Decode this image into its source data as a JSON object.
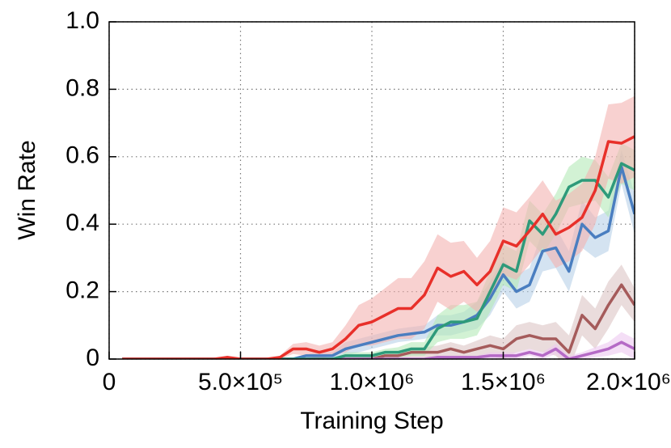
{
  "chart_data": {
    "type": "line",
    "xlabel": "Training Step",
    "ylabel": "Win Rate",
    "x": [
      50000,
      100000,
      150000,
      200000,
      250000,
      300000,
      350000,
      400000,
      450000,
      500000,
      550000,
      600000,
      650000,
      700000,
      750000,
      800000,
      850000,
      900000,
      950000,
      1000000,
      1050000,
      1100000,
      1150000,
      1200000,
      1250000,
      1300000,
      1350000,
      1400000,
      1450000,
      1500000,
      1550000,
      1600000,
      1650000,
      1700000,
      1750000,
      1800000,
      1850000,
      1900000,
      1950000,
      2000000
    ],
    "xlim": [
      0,
      2000000
    ],
    "xticks": [
      0,
      {
        "value": 500000,
        "label": "5.0×10⁵"
      },
      {
        "value": 1000000,
        "label": "1.0×10⁶"
      },
      {
        "value": 1500000,
        "label": "1.5×10⁶"
      },
      {
        "value": 2000000,
        "label": "2.0×10⁶"
      }
    ],
    "ylim": [
      0,
      1
    ],
    "yticks": [
      0,
      0.2,
      0.4,
      0.6,
      0.8,
      {
        "value": 1,
        "label": "1.0"
      }
    ],
    "grid": true,
    "series": [
      {
        "color": "#a55b5b",
        "band_color": "#dcc4c4",
        "values": [
          0,
          0,
          0,
          0,
          0,
          0,
          0,
          0,
          0,
          0,
          0,
          0,
          0,
          0,
          0,
          0,
          0,
          0,
          0,
          0,
          0.01,
          0.01,
          0.02,
          0.02,
          0.02,
          0.03,
          0.02,
          0.03,
          0.04,
          0.03,
          0.06,
          0.07,
          0.06,
          0.06,
          0.02,
          0.13,
          0.09,
          0.16,
          0.22,
          0.16
        ],
        "err": [
          0,
          0,
          0,
          0,
          0,
          0,
          0,
          0,
          0,
          0,
          0,
          0,
          0,
          0,
          0,
          0,
          0,
          0,
          0,
          0.005,
          0.01,
          0.01,
          0.015,
          0.015,
          0.02,
          0.02,
          0.02,
          0.025,
          0.03,
          0.03,
          0.04,
          0.04,
          0.04,
          0.05,
          0.05,
          0.06,
          0.06,
          0.07,
          0.06,
          0.05
        ]
      },
      {
        "color": "#b56ac6",
        "band_color": "#ecc8f0",
        "values": [
          0,
          0,
          0,
          0,
          0,
          0,
          0,
          0,
          0,
          0,
          0,
          0,
          0,
          0,
          0,
          0,
          0,
          0,
          0,
          0,
          0,
          0,
          0,
          0,
          0.005,
          0.005,
          0.005,
          0.005,
          0.01,
          0.01,
          0.01,
          0.02,
          0.01,
          0.03,
          0,
          0.01,
          0.02,
          0.03,
          0.05,
          0.03
        ],
        "err": [
          0,
          0,
          0,
          0,
          0,
          0,
          0,
          0,
          0,
          0,
          0,
          0,
          0,
          0,
          0,
          0,
          0,
          0,
          0,
          0,
          0,
          0,
          0,
          0,
          0.005,
          0.005,
          0.005,
          0.005,
          0.01,
          0.01,
          0.01,
          0.01,
          0.01,
          0.015,
          0.01,
          0.01,
          0.015,
          0.02,
          0.03,
          0.03
        ]
      },
      {
        "color": "#4a7ec0",
        "band_color": "#b8d0e8",
        "values": [
          0,
          0,
          0,
          0,
          0,
          0,
          0,
          0,
          0,
          0,
          0,
          0,
          0,
          0,
          0.01,
          0.01,
          0.01,
          0.03,
          0.04,
          0.05,
          0.06,
          0.07,
          0.075,
          0.08,
          0.1,
          0.1,
          0.11,
          0.13,
          0.18,
          0.25,
          0.2,
          0.22,
          0.32,
          0.33,
          0.26,
          0.4,
          0.36,
          0.38,
          0.57,
          0.43
        ],
        "err": [
          0,
          0,
          0,
          0,
          0,
          0,
          0,
          0,
          0,
          0,
          0,
          0,
          0,
          0,
          0.005,
          0.01,
          0.01,
          0.02,
          0.02,
          0.02,
          0.02,
          0.02,
          0.02,
          0.02,
          0.03,
          0.03,
          0.03,
          0.04,
          0.05,
          0.05,
          0.05,
          0.05,
          0.06,
          0.06,
          0.06,
          0.07,
          0.06,
          0.06,
          0.05,
          0.06
        ]
      },
      {
        "color": "#2e9a7a",
        "band_color": "#b4eab8",
        "values": [
          0,
          0,
          0,
          0,
          0,
          0,
          0,
          0,
          0,
          0,
          0,
          0,
          0,
          0,
          0,
          0,
          0,
          0.01,
          0.01,
          0.01,
          0.02,
          0.02,
          0.03,
          0.03,
          0.09,
          0.11,
          0.11,
          0.12,
          0.2,
          0.28,
          0.26,
          0.41,
          0.37,
          0.43,
          0.51,
          0.53,
          0.53,
          0.48,
          0.58,
          0.56
        ],
        "err": [
          0,
          0,
          0,
          0,
          0,
          0,
          0,
          0,
          0,
          0,
          0,
          0,
          0,
          0,
          0,
          0,
          0,
          0.01,
          0.01,
          0.01,
          0.01,
          0.015,
          0.02,
          0.02,
          0.04,
          0.05,
          0.05,
          0.05,
          0.06,
          0.06,
          0.06,
          0.06,
          0.06,
          0.06,
          0.06,
          0.07,
          0.06,
          0.06,
          0.06,
          0.06
        ]
      },
      {
        "color": "#e8302a",
        "band_color": "#f4b2b0",
        "values": [
          0,
          0,
          0,
          0,
          0,
          0,
          0,
          0,
          0.005,
          0,
          0,
          0,
          0.005,
          0.03,
          0.03,
          0.02,
          0.03,
          0.06,
          0.1,
          0.11,
          0.13,
          0.15,
          0.15,
          0.19,
          0.27,
          0.245,
          0.26,
          0.22,
          0.26,
          0.35,
          0.335,
          0.38,
          0.43,
          0.37,
          0.39,
          0.42,
          0.5,
          0.645,
          0.64,
          0.66
        ],
        "err": [
          0,
          0,
          0,
          0,
          0,
          0,
          0,
          0,
          0.005,
          0,
          0,
          0,
          0.005,
          0.015,
          0.02,
          0.02,
          0.02,
          0.04,
          0.06,
          0.07,
          0.08,
          0.09,
          0.09,
          0.1,
          0.1,
          0.1,
          0.09,
          0.08,
          0.09,
          0.1,
          0.1,
          0.1,
          0.1,
          0.1,
          0.1,
          0.1,
          0.1,
          0.11,
          0.12,
          0.12
        ]
      }
    ]
  }
}
